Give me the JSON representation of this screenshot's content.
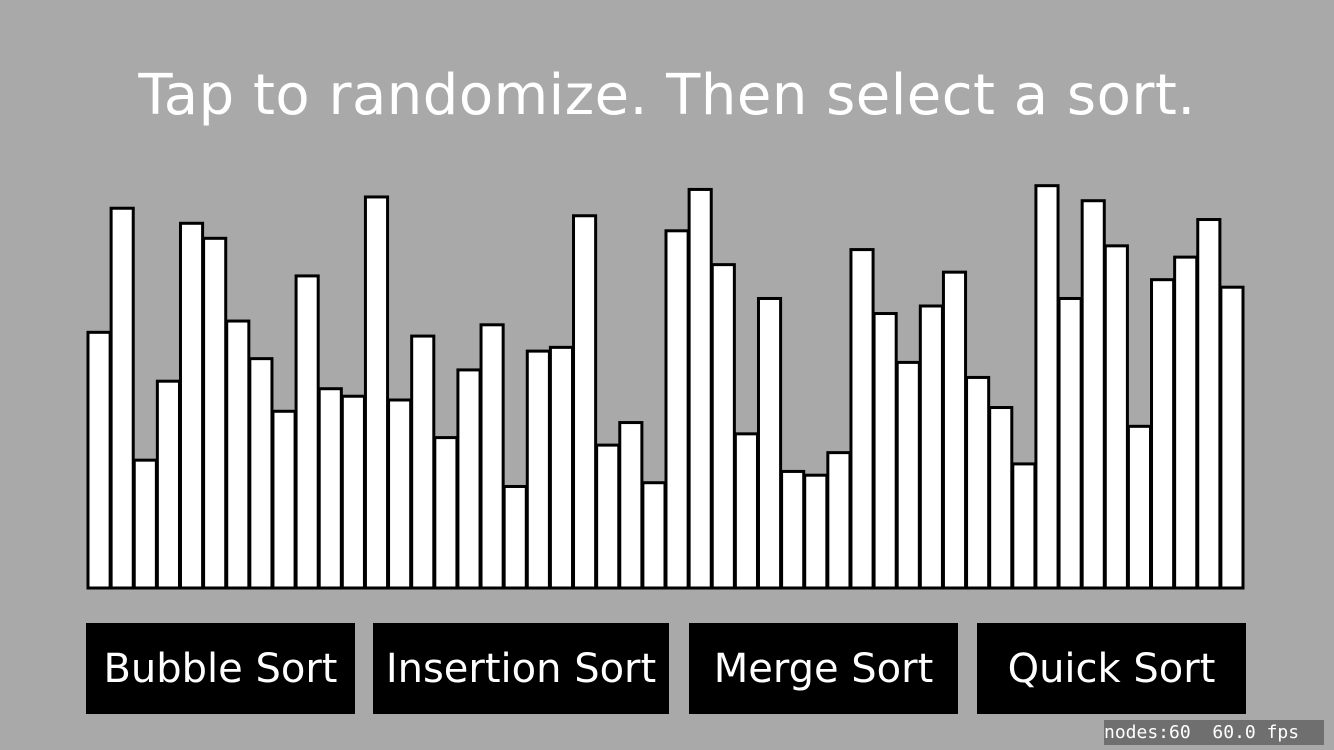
{
  "instruction": "Tap to randomize. Then select a sort.",
  "buttons": {
    "bubble": "Bubble Sort",
    "insertion": "Insertion Sort",
    "merge": "Merge Sort",
    "quick": "Quick Sort"
  },
  "stats": {
    "nodes": "nodes:60",
    "fps": "60.0 fps"
  },
  "colors": {
    "background": "#a9a9a9",
    "bar_fill": "#ffffff",
    "bar_stroke": "#000000",
    "button_background": "#000000",
    "button_text": "#ffffff"
  },
  "chart_data": {
    "type": "bar",
    "values": [
      0.68,
      1.01,
      0.34,
      0.55,
      0.97,
      0.93,
      0.71,
      0.61,
      0.47,
      0.83,
      0.53,
      0.51,
      1.04,
      0.5,
      0.67,
      0.4,
      0.58,
      0.7,
      0.27,
      0.63,
      0.64,
      0.99,
      0.38,
      0.44,
      0.28,
      0.95,
      1.06,
      0.86,
      0.41,
      0.77,
      0.31,
      0.3,
      0.36,
      0.9,
      0.73,
      0.6,
      0.75,
      0.84,
      0.56,
      0.48,
      0.33,
      1.07,
      0.77,
      1.03,
      0.91,
      0.43,
      0.82,
      0.88,
      0.98,
      0.8
    ]
  }
}
